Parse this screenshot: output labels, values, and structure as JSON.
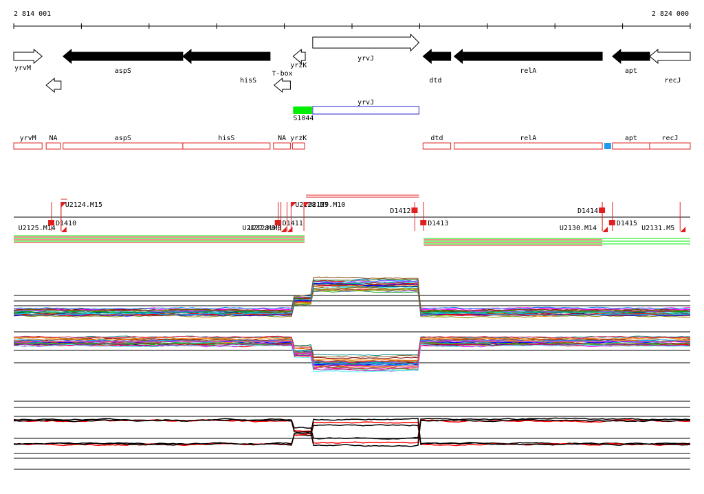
{
  "ruler": {
    "start_label": "2 814 001",
    "end_label": "2 824 000",
    "start_bp": 2814001,
    "end_bp": 2824000
  },
  "colors": {
    "gene_filled": "#000000",
    "feature_red": "#e02020",
    "probe_green": "#00ee00",
    "probe_blue": "#2020cc",
    "marker_cyan": "#1f9bf0",
    "signal_red": "#ff0000",
    "signal_black": "#000000"
  },
  "genes": [
    {
      "label": "yrvM",
      "icon": "arrow-right-hollow",
      "start": 2814001,
      "end": 2814420,
      "strand": "+",
      "style": "hollow",
      "lane": 0,
      "label_side": "below-left"
    },
    {
      "label": "",
      "icon": "arrow-left-hollow",
      "start": 2814480,
      "end": 2814700,
      "strand": "-",
      "style": "hollow",
      "lane": 1,
      "label_side": "none"
    },
    {
      "label": "aspS",
      "icon": "arrow-left-filled",
      "start": 2814730,
      "end": 2816500,
      "strand": "-",
      "style": "filled",
      "lane": 0,
      "label_side": "below"
    },
    {
      "label": "hisS",
      "icon": "arrow-left-filled",
      "start": 2816500,
      "end": 2817790,
      "strand": "-",
      "style": "filled",
      "lane": 0,
      "label_side": "below-offset"
    },
    {
      "label": "T-box",
      "icon": "arrow-left-hollow",
      "start": 2817850,
      "end": 2818090,
      "strand": "-",
      "style": "hollow",
      "lane": 1,
      "label_side": "above"
    },
    {
      "label": "yrzK",
      "icon": "arrow-left-hollow",
      "start": 2818130,
      "end": 2818310,
      "strand": "-",
      "style": "hollow",
      "lane": 0,
      "label_side": "below"
    },
    {
      "label": "yrvJ",
      "icon": "arrow-right-hollow",
      "start": 2818420,
      "end": 2819990,
      "strand": "+",
      "style": "hollow",
      "lane": 0,
      "label_side": "below",
      "raise": true
    },
    {
      "label": "dtd",
      "icon": "arrow-left-filled",
      "start": 2820050,
      "end": 2820460,
      "strand": "-",
      "style": "filled",
      "lane": 0,
      "label_side": "below-offset"
    },
    {
      "label": "relA",
      "icon": "arrow-left-filled",
      "start": 2820510,
      "end": 2822700,
      "strand": "-",
      "style": "filled",
      "lane": 0,
      "label_side": "below"
    },
    {
      "label": "apt",
      "icon": "arrow-left-filled",
      "start": 2822850,
      "end": 2823400,
      "strand": "-",
      "style": "filled",
      "lane": 0,
      "label_side": "below"
    },
    {
      "label": "recJ",
      "icon": "arrow-left-hollow",
      "start": 2823400,
      "end": 2824000,
      "strand": "-",
      "style": "hollow",
      "lane": 0,
      "label_side": "below-offset"
    }
  ],
  "probes": [
    {
      "label": "S1044",
      "start": 2818130,
      "end": 2818410,
      "fill": "probe_green",
      "label_side": "below"
    },
    {
      "label": "yrvJ",
      "start": 2818420,
      "end": 2819990,
      "fill": "none",
      "stroke": "probe_blue",
      "label_side": "above"
    }
  ],
  "features": [
    {
      "label": "yrvM",
      "start": 2814001,
      "end": 2814420
    },
    {
      "label": "NA",
      "start": 2814480,
      "end": 2814690
    },
    {
      "label": "aspS",
      "start": 2814730,
      "end": 2816500
    },
    {
      "label": "hisS",
      "start": 2816500,
      "end": 2817790
    },
    {
      "label": "NA",
      "start": 2817840,
      "end": 2818090
    },
    {
      "label": "yrzK",
      "start": 2818120,
      "end": 2818300
    },
    {
      "label": "dtd",
      "start": 2820050,
      "end": 2820460
    },
    {
      "label": "relA",
      "start": 2820510,
      "end": 2822700
    },
    {
      "label": "",
      "start": 2822730,
      "end": 2822830,
      "fill": "marker_cyan"
    },
    {
      "label": "apt",
      "start": 2822850,
      "end": 2823400
    },
    {
      "label": "recJ",
      "start": 2823400,
      "end": 2824000
    }
  ],
  "segments": {
    "baseline_start": 2814001,
    "baseline_end": 2824000,
    "markers": [
      {
        "label": "U2125.M14",
        "pos": 2814700,
        "side": "low-left"
      },
      {
        "label": "D1410",
        "pos": 2814560,
        "side": "mid"
      },
      {
        "label": "U2124.M15",
        "pos": 2814700,
        "side": "high"
      },
      {
        "label": "U2127.M8",
        "pos": 2817950,
        "side": "low-left"
      },
      {
        "label": "U2128.M8",
        "pos": 2818040,
        "side": "low-left"
      },
      {
        "label": "D1411",
        "pos": 2817910,
        "side": "mid"
      },
      {
        "label": "U2128.M7",
        "pos": 2818100,
        "side": "high"
      },
      {
        "label": "U2129.M10",
        "pos": 2818290,
        "side": "high"
      },
      {
        "label": "D1412",
        "pos": 2819930,
        "side": "high-left"
      },
      {
        "label": "D1413",
        "pos": 2820060,
        "side": "mid"
      },
      {
        "label": "D1414",
        "pos": 2822700,
        "side": "high-left"
      },
      {
        "label": "U2130.M14",
        "pos": 2822700,
        "side": "low-left"
      },
      {
        "label": "D1415",
        "pos": 2822850,
        "side": "mid"
      },
      {
        "label": "U2131.M5",
        "pos": 2823850,
        "side": "low-left"
      }
    ],
    "high_bars": [
      {
        "start": 2818320,
        "end": 2819990,
        "color": "feature_red"
      },
      {
        "start": 2818320,
        "end": 2819990,
        "color": "feature_red"
      },
      {
        "start": 2814700,
        "end": 2814790,
        "color": "feature_red"
      }
    ],
    "low_bars": [
      {
        "start": 2814001,
        "end": 2818300,
        "color": "probe_green"
      },
      {
        "start": 2814001,
        "end": 2818300,
        "color": "feature_red"
      },
      {
        "start": 2820060,
        "end": 2824000,
        "color": "probe_green"
      },
      {
        "start": 2820060,
        "end": 2822700,
        "color": "feature_red"
      }
    ]
  },
  "tracks": {
    "regions": [
      {
        "start": 2814001,
        "end": 2818120,
        "level": 0
      },
      {
        "start": 2818120,
        "end": 2818420,
        "level": 0.45
      },
      {
        "start": 2818420,
        "end": 2819990,
        "level": 1
      },
      {
        "start": 2819990,
        "end": 2824000,
        "level": 0
      }
    ],
    "multi_upper": {
      "baseline": 455,
      "top": 410,
      "lines": [
        430,
        438,
        445
      ],
      "amplitude": 40,
      "n": 26
    },
    "multi_lower": {
      "baseline": 497,
      "bottom": 535,
      "lines": [
        483,
        510,
        528
      ],
      "amplitude": -32,
      "n": 26
    },
    "summary_upper": {
      "baseline": 612,
      "lines": [
        584,
        593,
        606
      ],
      "amplitude": -34
    },
    "summary_lower": {
      "baseline": 645,
      "lines": [
        638,
        660,
        667,
        683
      ],
      "amplitude": 34
    }
  }
}
